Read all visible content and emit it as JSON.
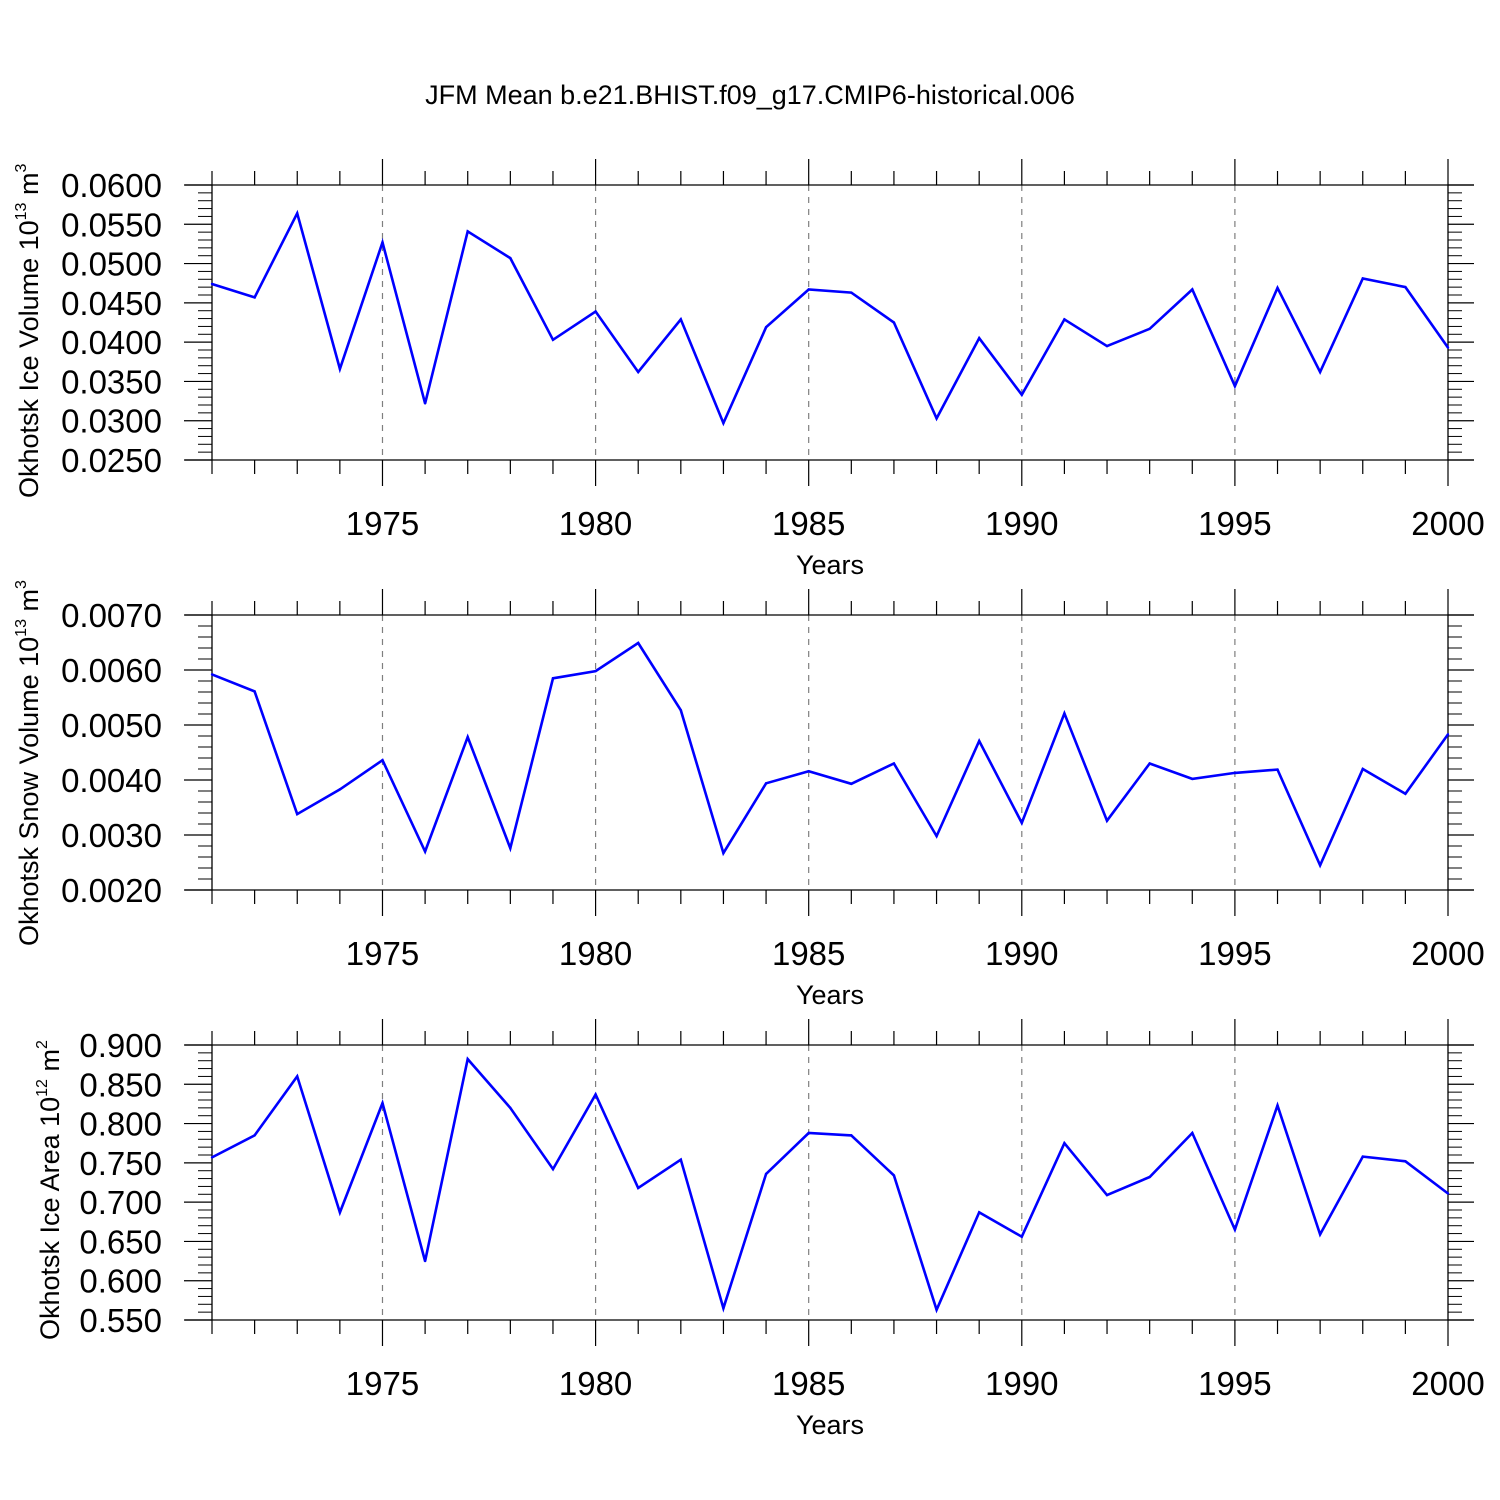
{
  "title": "JFM Mean b.e21.BHIST.f09_g17.CMIP6-historical.006",
  "colors": {
    "series": "#0000ff",
    "axis": "#000000",
    "grid": "#7f7f7f"
  },
  "chart_data": [
    {
      "type": "line",
      "ylabel": {
        "text": "Okhotsk Ice Volume 10",
        "exp": "13",
        "unit": "m",
        "unit_exp": "3"
      },
      "xlabel": "Years",
      "xlim": [
        1971,
        2000
      ],
      "ylim": [
        0.025,
        0.06
      ],
      "x_ticks": [
        1975,
        1980,
        1985,
        1990,
        1995,
        2000
      ],
      "y_ticks": [
        "0.0250",
        "0.0300",
        "0.0350",
        "0.0400",
        "0.0450",
        "0.0500",
        "0.0550",
        "0.0600"
      ],
      "grid": "vertical dashed at major x ticks",
      "x": [
        1971,
        1972,
        1973,
        1974,
        1975,
        1976,
        1977,
        1978,
        1979,
        1980,
        1981,
        1982,
        1983,
        1984,
        1985,
        1986,
        1987,
        1988,
        1989,
        1990,
        1991,
        1992,
        1993,
        1994,
        1995,
        1996,
        1997,
        1998,
        1999,
        2000
      ],
      "values": [
        0.0474,
        0.0457,
        0.0564,
        0.0366,
        0.0527,
        0.0322,
        0.0541,
        0.0507,
        0.0403,
        0.0439,
        0.0362,
        0.0429,
        0.0297,
        0.0419,
        0.0467,
        0.0463,
        0.0425,
        0.0303,
        0.0405,
        0.0333,
        0.0429,
        0.0395,
        0.0417,
        0.0467,
        0.0344,
        0.0469,
        0.0362,
        0.0481,
        0.047,
        0.0393
      ]
    },
    {
      "type": "line",
      "ylabel": {
        "text": "Okhotsk Snow Volume 10",
        "exp": "13",
        "unit": "m",
        "unit_exp": "3"
      },
      "xlabel": "Years",
      "xlim": [
        1971,
        2000
      ],
      "ylim": [
        0.002,
        0.007
      ],
      "x_ticks": [
        1975,
        1980,
        1985,
        1990,
        1995,
        2000
      ],
      "y_ticks": [
        "0.0020",
        "0.0030",
        "0.0040",
        "0.0050",
        "0.0060",
        "0.0070"
      ],
      "grid": "vertical dashed at major x ticks",
      "x": [
        1971,
        1972,
        1973,
        1974,
        1975,
        1976,
        1977,
        1978,
        1979,
        1980,
        1981,
        1982,
        1983,
        1984,
        1985,
        1986,
        1987,
        1988,
        1989,
        1990,
        1991,
        1992,
        1993,
        1994,
        1995,
        1996,
        1997,
        1998,
        1999,
        2000
      ],
      "values": [
        0.00592,
        0.00561,
        0.00338,
        0.00383,
        0.00436,
        0.0027,
        0.00478,
        0.00276,
        0.00585,
        0.00598,
        0.00649,
        0.00527,
        0.00267,
        0.00394,
        0.00416,
        0.00393,
        0.0043,
        0.00298,
        0.00471,
        0.00322,
        0.00521,
        0.00326,
        0.0043,
        0.00402,
        0.00413,
        0.00419,
        0.00245,
        0.0042,
        0.00375,
        0.00483
      ]
    },
    {
      "type": "line",
      "ylabel": {
        "text": "Okhotsk Ice Area 10",
        "exp": "12",
        "unit": "m",
        "unit_exp": "2"
      },
      "xlabel": "Years",
      "xlim": [
        1971,
        2000
      ],
      "ylim": [
        0.55,
        0.9
      ],
      "x_ticks": [
        1975,
        1980,
        1985,
        1990,
        1995,
        2000
      ],
      "y_ticks": [
        "0.550",
        "0.600",
        "0.650",
        "0.700",
        "0.750",
        "0.800",
        "0.850",
        "0.900"
      ],
      "grid": "vertical dashed at major x ticks",
      "x": [
        1971,
        1972,
        1973,
        1974,
        1975,
        1976,
        1977,
        1978,
        1979,
        1980,
        1981,
        1982,
        1983,
        1984,
        1985,
        1986,
        1987,
        1988,
        1989,
        1990,
        1991,
        1992,
        1993,
        1994,
        1995,
        1996,
        1997,
        1998,
        1999,
        2000
      ],
      "values": [
        0.757,
        0.785,
        0.86,
        0.687,
        0.826,
        0.625,
        0.882,
        0.82,
        0.742,
        0.837,
        0.718,
        0.754,
        0.565,
        0.736,
        0.788,
        0.785,
        0.734,
        0.563,
        0.687,
        0.656,
        0.775,
        0.709,
        0.732,
        0.788,
        0.665,
        0.823,
        0.659,
        0.758,
        0.752,
        0.711
      ]
    }
  ]
}
